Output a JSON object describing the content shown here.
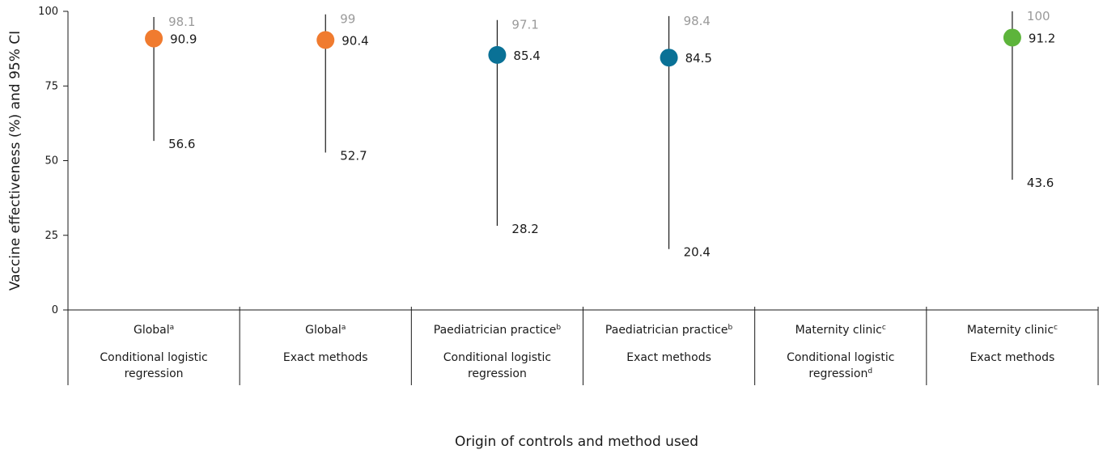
{
  "chart_data": {
    "type": "scatter",
    "ylabel": "Vaccine effectiveness (%) and 95% CI",
    "xlabel": "Origin of controls and method used",
    "ylim": [
      0,
      100
    ],
    "yticks": [
      "0",
      "25",
      "50",
      "75",
      "100"
    ],
    "yticks_values": [
      0,
      25,
      50,
      75,
      100
    ],
    "grid": false,
    "categories": [
      {
        "group": "Global",
        "sup": "a",
        "method": [
          "Conditional logistic",
          "regression"
        ],
        "method_sup": ""
      },
      {
        "group": "Global",
        "sup": "a",
        "method": [
          "Exact methods"
        ],
        "method_sup": ""
      },
      {
        "group": "Paediatrician practice",
        "sup": "b",
        "method": [
          "Conditional logistic",
          "regression"
        ],
        "method_sup": ""
      },
      {
        "group": "Paediatrician practice",
        "sup": "b",
        "method": [
          "Exact methods"
        ],
        "method_sup": ""
      },
      {
        "group": "Maternity clinic",
        "sup": "c",
        "method": [
          "Conditional logistic",
          "regression"
        ],
        "method_sup": "d"
      },
      {
        "group": "Maternity clinic",
        "sup": "c",
        "method": [
          "Exact methods"
        ],
        "method_sup": ""
      }
    ],
    "points": [
      {
        "index": 0,
        "value": 90.9,
        "value_label": "90.9",
        "lower": 56.6,
        "lower_label": "56.6",
        "upper": 98.1,
        "upper_label": "98.1",
        "color": "#f07b2f"
      },
      {
        "index": 1,
        "value": 90.4,
        "value_label": "90.4",
        "lower": 52.7,
        "lower_label": "52.7",
        "upper": 99,
        "upper_label": "99",
        "color": "#f07b2f"
      },
      {
        "index": 2,
        "value": 85.4,
        "value_label": "85.4",
        "lower": 28.2,
        "lower_label": "28.2",
        "upper": 97.1,
        "upper_label": "97.1",
        "color": "#0a7196"
      },
      {
        "index": 3,
        "value": 84.5,
        "value_label": "84.5",
        "lower": 20.4,
        "lower_label": "20.4",
        "upper": 98.4,
        "upper_label": "98.4",
        "color": "#0a7196"
      },
      {
        "index": 5,
        "value": 91.2,
        "value_label": "91.2",
        "lower": 43.6,
        "lower_label": "43.6",
        "upper": 100,
        "upper_label": "100",
        "color": "#5db43b"
      }
    ],
    "colors": {
      "axis": "#1a1a1a",
      "ci_label": "#9a9a9a"
    }
  }
}
